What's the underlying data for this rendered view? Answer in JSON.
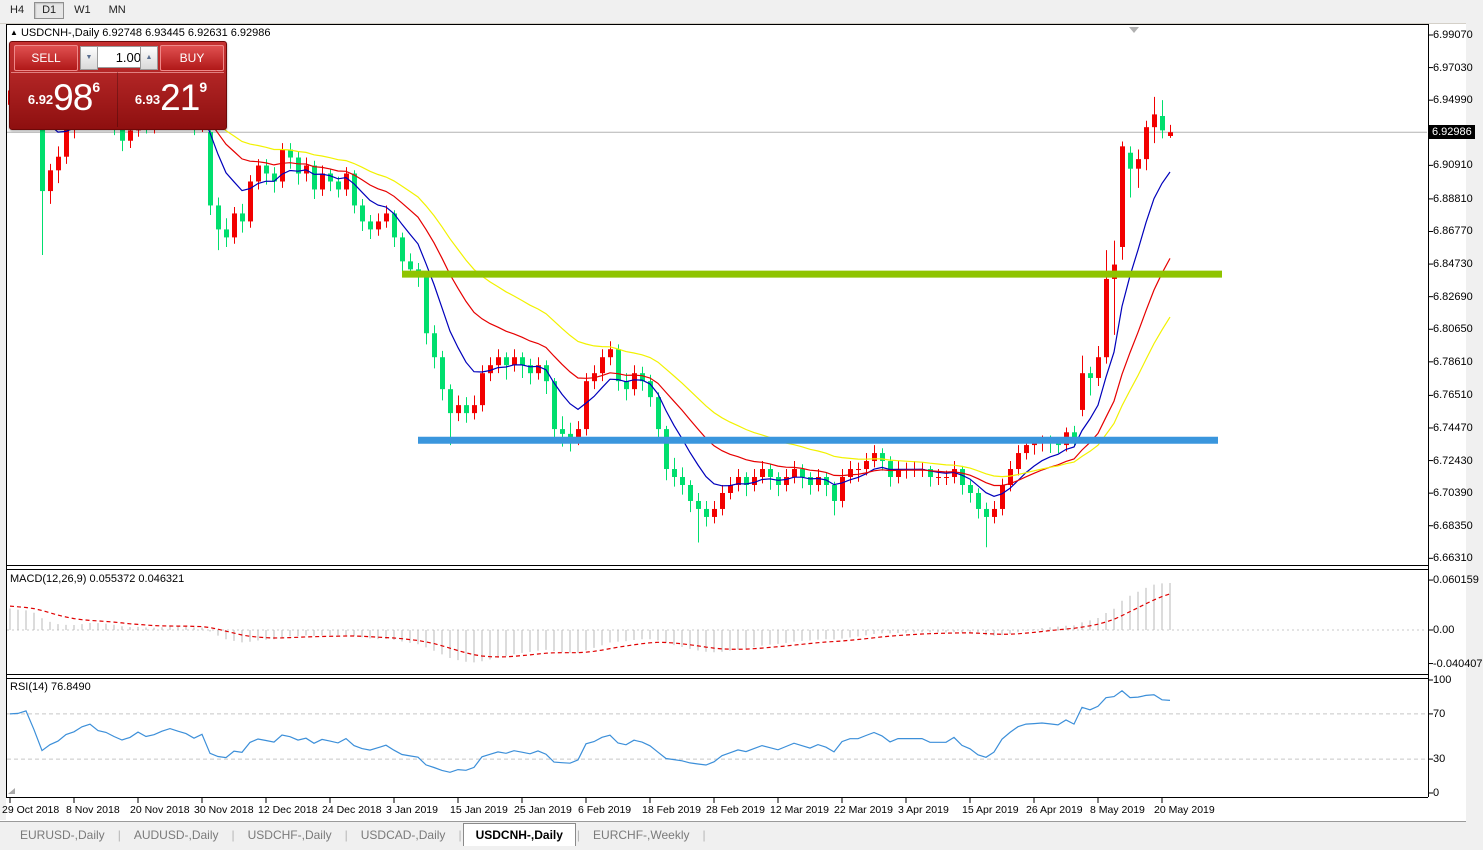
{
  "toolbar": {
    "timeframes": [
      {
        "label": "H4",
        "active": false
      },
      {
        "label": "D1",
        "active": true
      },
      {
        "label": "W1",
        "active": false
      },
      {
        "label": "MN",
        "active": false
      }
    ]
  },
  "chart_header": {
    "collapse_icon": "▲",
    "symbol": "USDCNH-,Daily",
    "ohlc": "6.92748 6.93445 6.92631 6.92986"
  },
  "trade_panel": {
    "sell_label": "SELL",
    "buy_label": "BUY",
    "volume": "1.00",
    "spin_down_icon": "▼",
    "spin_up_icon": "▲",
    "sell_price": {
      "small": "6.92",
      "big": "98",
      "sup": "6"
    },
    "buy_price": {
      "small": "6.93",
      "big": "21",
      "sup": "9"
    }
  },
  "indicators": {
    "macd_label": "MACD(12,26,9) 0.055372 0.046321",
    "rsi_label": "RSI(14) 76.8490"
  },
  "price_axis": {
    "labels": [
      "6.99070",
      "6.97030",
      "6.94990",
      "6.90910",
      "6.88810",
      "6.86770",
      "6.84730",
      "6.82690",
      "6.80650",
      "6.78610",
      "6.76510",
      "6.74470",
      "6.72430",
      "6.70390",
      "6.68350",
      "6.66310"
    ],
    "values": [
      6.9907,
      6.9703,
      6.9499,
      6.9091,
      6.8881,
      6.8677,
      6.8473,
      6.8269,
      6.8065,
      6.7861,
      6.7651,
      6.7447,
      6.7243,
      6.7039,
      6.6835,
      6.6631
    ],
    "current_price_label": "6.92986",
    "current_price": 6.92986
  },
  "macd_axis": {
    "labels": [
      "0.060159",
      "0.00",
      "-0.040407"
    ],
    "values": [
      0.060159,
      0,
      -0.040407
    ]
  },
  "rsi_axis": {
    "labels": [
      "100",
      "70",
      "30",
      "0"
    ],
    "values": [
      100,
      70,
      30,
      0
    ]
  },
  "x_axis": {
    "tick_step": 8,
    "tick_labels": [
      "29 Oct 2018",
      "8 Nov 2018",
      "20 Nov 2018",
      "30 Nov 2018",
      "12 Dec 2018",
      "24 Dec 2018",
      "3 Jan 2019",
      "15 Jan 2019",
      "25 Jan 2019",
      "6 Feb 2019",
      "18 Feb 2019",
      "28 Feb 2019",
      "12 Mar 2019",
      "22 Mar 2019",
      "3 Apr 2019",
      "15 Apr 2019",
      "26 Apr 2019",
      "8 May 2019",
      "20 May 2019"
    ]
  },
  "tabs": [
    {
      "label": "EURUSD-,Daily",
      "active": false
    },
    {
      "label": "AUDUSD-,Daily",
      "active": false
    },
    {
      "label": "USDCHF-,Daily",
      "active": false
    },
    {
      "label": "USDCAD-,Daily",
      "active": false
    },
    {
      "label": "USDCNH-,Daily",
      "active": true
    },
    {
      "label": "EURCHF-,Weekly",
      "active": false
    }
  ],
  "colors": {
    "bullish": "#f20000",
    "bearish": "#00df6e",
    "ma_fast": "#0000bb",
    "ma_mid": "#e60000",
    "ma_slow": "#f2f200",
    "resistance": "#8fc400",
    "support": "#3a96dd",
    "current_price_line": "#b4b4b4",
    "macd_hist": "#b9b9b9",
    "macd_signal": "#e00000",
    "rsi_line": "#3c8fd9",
    "level_dash": "#c8c8c8"
  },
  "chart_data": {
    "type": "candlestick",
    "symbol": "USDCNH",
    "timeframe": "Daily",
    "ohlc_display": {
      "open": 6.92748,
      "high": 6.93445,
      "low": 6.92631,
      "close": 6.92986
    },
    "price_range": [
      6.6583,
      6.9951
    ],
    "bull_direction_color": "red",
    "bear_direction_color": "green",
    "candles": [
      [
        6.947,
        6.9615,
        6.943,
        6.956
      ],
      [
        6.956,
        6.968,
        6.951,
        6.9625
      ],
      [
        6.9625,
        6.977,
        6.958,
        6.9695
      ],
      [
        6.9695,
        6.972,
        6.938,
        6.944
      ],
      [
        6.944,
        6.9465,
        6.853,
        6.893
      ],
      [
        6.893,
        6.91,
        6.885,
        6.906
      ],
      [
        6.906,
        6.921,
        6.898,
        6.9145
      ],
      [
        6.9145,
        6.936,
        6.91,
        6.932
      ],
      [
        6.932,
        6.944,
        6.926,
        6.9395
      ],
      [
        6.9395,
        6.959,
        6.935,
        6.955
      ],
      [
        6.955,
        6.97,
        6.95,
        6.964
      ],
      [
        6.964,
        6.968,
        6.943,
        6.949
      ],
      [
        6.949,
        6.956,
        6.939,
        6.9445
      ],
      [
        6.9445,
        6.948,
        6.928,
        6.934
      ],
      [
        6.934,
        6.939,
        6.918,
        6.9245
      ],
      [
        6.9245,
        6.936,
        6.92,
        6.931
      ],
      [
        6.931,
        6.95,
        6.927,
        6.945
      ],
      [
        6.945,
        6.948,
        6.929,
        6.934
      ],
      [
        6.934,
        6.943,
        6.929,
        6.9385
      ],
      [
        6.9385,
        6.953,
        6.934,
        6.948
      ],
      [
        6.948,
        6.962,
        6.943,
        6.955
      ],
      [
        6.955,
        6.958,
        6.944,
        6.9495
      ],
      [
        6.9495,
        6.953,
        6.939,
        6.9445
      ],
      [
        6.9445,
        6.947,
        6.928,
        6.934
      ],
      [
        6.934,
        6.947,
        6.93,
        6.943
      ],
      [
        6.93,
        6.931,
        6.878,
        6.884
      ],
      [
        6.884,
        6.889,
        6.856,
        6.869
      ],
      [
        6.869,
        6.876,
        6.858,
        6.864
      ],
      [
        6.864,
        6.883,
        6.86,
        6.879
      ],
      [
        6.879,
        6.885,
        6.867,
        6.874
      ],
      [
        6.874,
        6.903,
        6.87,
        6.899
      ],
      [
        6.899,
        6.913,
        6.894,
        6.909
      ],
      [
        6.909,
        6.913,
        6.897,
        6.904
      ],
      [
        6.904,
        6.908,
        6.892,
        6.899
      ],
      [
        6.899,
        6.923,
        6.895,
        6.919
      ],
      [
        6.919,
        6.923,
        6.907,
        6.914
      ],
      [
        6.914,
        6.918,
        6.897,
        6.904
      ],
      [
        6.904,
        6.914,
        6.899,
        6.909
      ],
      [
        6.909,
        6.912,
        6.888,
        6.894
      ],
      [
        6.894,
        6.909,
        6.89,
        6.904
      ],
      [
        6.904,
        6.907,
        6.893,
        6.899
      ],
      [
        6.899,
        6.902,
        6.889,
        6.894
      ],
      [
        6.894,
        6.908,
        6.89,
        6.904
      ],
      [
        6.904,
        6.906,
        6.879,
        6.884
      ],
      [
        6.884,
        6.888,
        6.868,
        6.874
      ],
      [
        6.874,
        6.878,
        6.863,
        6.869
      ],
      [
        6.869,
        6.879,
        6.865,
        6.874
      ],
      [
        6.874,
        6.884,
        6.87,
        6.879
      ],
      [
        6.879,
        6.881,
        6.858,
        6.864
      ],
      [
        6.864,
        6.867,
        6.843,
        6.849
      ],
      [
        6.849,
        6.854,
        6.839,
        6.844
      ],
      [
        6.844,
        6.848,
        6.833,
        6.839
      ],
      [
        6.839,
        6.841,
        6.797,
        6.804
      ],
      [
        6.804,
        6.809,
        6.782,
        6.789
      ],
      [
        6.789,
        6.793,
        6.762,
        6.769
      ],
      [
        6.769,
        6.772,
        6.734,
        6.754
      ],
      [
        6.754,
        6.765,
        6.749,
        6.759
      ],
      [
        6.759,
        6.764,
        6.748,
        6.754
      ],
      [
        6.754,
        6.765,
        6.75,
        6.759
      ],
      [
        6.759,
        6.784,
        6.755,
        6.779
      ],
      [
        6.779,
        6.789,
        6.774,
        6.784
      ],
      [
        6.784,
        6.794,
        6.779,
        6.789
      ],
      [
        6.789,
        6.792,
        6.775,
        6.784
      ],
      [
        6.784,
        6.794,
        6.78,
        6.789
      ],
      [
        6.789,
        6.792,
        6.776,
        6.784
      ],
      [
        6.784,
        6.788,
        6.772,
        6.779
      ],
      [
        6.779,
        6.789,
        6.775,
        6.784
      ],
      [
        6.784,
        6.787,
        6.766,
        6.774
      ],
      [
        6.774,
        6.776,
        6.736,
        6.744
      ],
      [
        6.744,
        6.752,
        6.733,
        6.741
      ],
      [
        6.741,
        6.748,
        6.73,
        6.739
      ],
      [
        6.739,
        6.749,
        6.734,
        6.744
      ],
      [
        6.744,
        6.779,
        6.74,
        6.774
      ],
      [
        6.774,
        6.784,
        6.769,
        6.779
      ],
      [
        6.779,
        6.794,
        6.774,
        6.789
      ],
      [
        6.789,
        6.799,
        6.784,
        6.794
      ],
      [
        6.794,
        6.797,
        6.768,
        6.774
      ],
      [
        6.774,
        6.779,
        6.762,
        6.769
      ],
      [
        6.769,
        6.784,
        6.765,
        6.779
      ],
      [
        6.779,
        6.783,
        6.768,
        6.774
      ],
      [
        6.774,
        6.778,
        6.758,
        6.764
      ],
      [
        6.764,
        6.767,
        6.738,
        6.744
      ],
      [
        6.744,
        6.746,
        6.712,
        6.719
      ],
      [
        6.719,
        6.726,
        6.708,
        6.714
      ],
      [
        6.714,
        6.72,
        6.703,
        6.709
      ],
      [
        6.709,
        6.712,
        6.692,
        6.699
      ],
      [
        6.699,
        6.704,
        6.673,
        6.694
      ],
      [
        6.694,
        6.699,
        6.683,
        6.689
      ],
      [
        6.689,
        6.699,
        6.685,
        6.694
      ],
      [
        6.694,
        6.709,
        6.69,
        6.704
      ],
      [
        6.704,
        6.714,
        6.7,
        6.709
      ],
      [
        6.709,
        6.719,
        6.705,
        6.714
      ],
      [
        6.714,
        6.717,
        6.702,
        6.709
      ],
      [
        6.709,
        6.719,
        6.705,
        6.714
      ],
      [
        6.714,
        6.724,
        6.71,
        6.719
      ],
      [
        6.719,
        6.722,
        6.706,
        6.714
      ],
      [
        6.714,
        6.717,
        6.702,
        6.709
      ],
      [
        6.709,
        6.719,
        6.705,
        6.714
      ],
      [
        6.714,
        6.724,
        6.71,
        6.719
      ],
      [
        6.719,
        6.722,
        6.707,
        6.714
      ],
      [
        6.714,
        6.717,
        6.703,
        6.709
      ],
      [
        6.709,
        6.719,
        6.705,
        6.714
      ],
      [
        6.714,
        6.717,
        6.702,
        6.709
      ],
      [
        6.709,
        6.711,
        6.69,
        6.699
      ],
      [
        6.699,
        6.719,
        6.695,
        6.714
      ],
      [
        6.714,
        6.724,
        6.71,
        6.719
      ],
      [
        6.719,
        6.723,
        6.711,
        6.719
      ],
      [
        6.719,
        6.729,
        6.715,
        6.724
      ],
      [
        6.724,
        6.734,
        6.72,
        6.729
      ],
      [
        6.729,
        6.732,
        6.718,
        6.724
      ],
      [
        6.724,
        6.727,
        6.708,
        6.714
      ],
      [
        6.714,
        6.724,
        6.71,
        6.719
      ],
      [
        6.719,
        6.723,
        6.713,
        6.719
      ],
      [
        6.719,
        6.724,
        6.714,
        6.719
      ],
      [
        6.719,
        6.723,
        6.714,
        6.719
      ],
      [
        6.719,
        6.721,
        6.708,
        6.714
      ],
      [
        6.714,
        6.719,
        6.709,
        6.714
      ],
      [
        6.714,
        6.718,
        6.709,
        6.714
      ],
      [
        6.714,
        6.724,
        6.71,
        6.719
      ],
      [
        6.719,
        6.721,
        6.703,
        6.709
      ],
      [
        6.709,
        6.712,
        6.698,
        6.704
      ],
      [
        6.704,
        6.707,
        6.688,
        6.694
      ],
      [
        6.694,
        6.698,
        6.67,
        6.689
      ],
      [
        6.689,
        6.699,
        6.685,
        6.694
      ],
      [
        6.694,
        6.713,
        6.69,
        6.709
      ],
      [
        6.709,
        6.724,
        6.705,
        6.719
      ],
      [
        6.719,
        6.734,
        6.715,
        6.729
      ],
      [
        6.729,
        6.739,
        6.725,
        6.734
      ],
      [
        6.734,
        6.738,
        6.728,
        6.735
      ],
      [
        6.735,
        6.74,
        6.73,
        6.736
      ],
      [
        6.736,
        6.74,
        6.729,
        6.735
      ],
      [
        6.735,
        6.739,
        6.729,
        6.734
      ],
      [
        6.734,
        6.745,
        6.73,
        6.742
      ],
      [
        6.742,
        6.746,
        6.733,
        6.738
      ],
      [
        6.756,
        6.79,
        6.752,
        6.779
      ],
      [
        6.779,
        6.783,
        6.765,
        6.776
      ],
      [
        6.776,
        6.796,
        6.771,
        6.789
      ],
      [
        6.789,
        6.856,
        6.785,
        6.838
      ],
      [
        6.838,
        6.862,
        6.803,
        6.847
      ],
      [
        6.858,
        6.924,
        6.85,
        6.921
      ],
      [
        6.917,
        6.921,
        6.889,
        6.907
      ],
      [
        6.907,
        6.919,
        6.895,
        6.913
      ],
      [
        6.913,
        6.937,
        6.906,
        6.933
      ],
      [
        6.933,
        6.952,
        6.923,
        6.941
      ],
      [
        6.94,
        6.9499,
        6.926,
        6.931
      ],
      [
        6.92748,
        6.93445,
        6.92631,
        6.92986
      ]
    ],
    "moving_averages": [
      {
        "name": "fast-ema",
        "period": 8,
        "color_key": "ma_fast"
      },
      {
        "name": "mid-ema",
        "period": 18,
        "color_key": "ma_mid"
      },
      {
        "name": "slow-ema",
        "period": 30,
        "color_key": "ma_slow"
      }
    ],
    "macd": {
      "params": [
        12,
        26,
        9
      ],
      "current": 0.055372,
      "signal_current": 0.046321,
      "display_range": [
        0.060159,
        -0.040407
      ]
    },
    "rsi": {
      "period": 14,
      "current": 76.849,
      "levels": [
        70,
        30
      ],
      "range": [
        0,
        100
      ]
    },
    "resistance_line": {
      "price": 6.841,
      "from_index": 49,
      "to_index": 151.5
    },
    "support_line": {
      "price": 6.737,
      "from_index": 51,
      "to_index": 151
    }
  }
}
